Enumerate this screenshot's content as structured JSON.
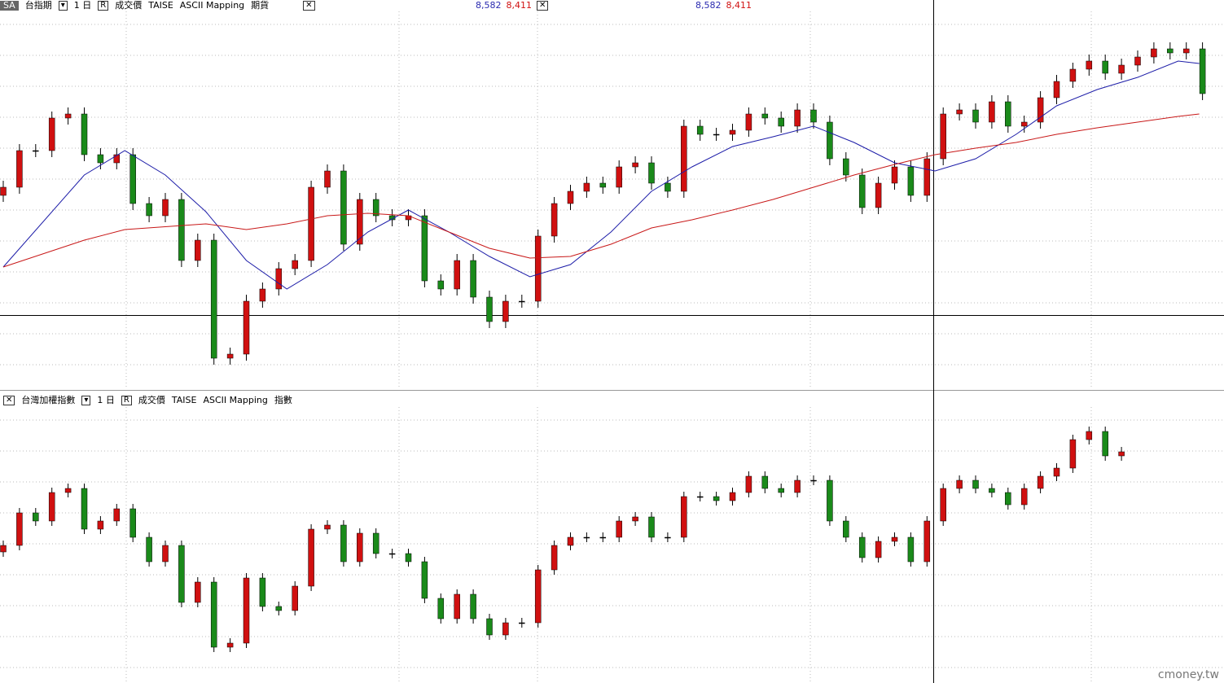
{
  "toolbar_top": {
    "symbol_tag": "SA",
    "name": "台指期",
    "period": "1 日",
    "mode": "R",
    "price_field": "成交價",
    "source": "TAISE",
    "mapping": "ASCII Mapping",
    "market": "期貨",
    "quote_a": "8,582",
    "quote_b": "8,411",
    "quote_c": "8,582",
    "quote_d": "8,411"
  },
  "toolbar_bottom": {
    "name": "台灣加權指數",
    "period": "1 日",
    "mode": "R",
    "price_field": "成交價",
    "source": "TAISE",
    "mapping": "ASCII Mapping",
    "market": "指數"
  },
  "watermark": "cmoney.tw",
  "chart_data": [
    {
      "type": "candlestick",
      "ylim": [
        0,
        464
      ],
      "up_color": "#d01010",
      "down_color": "#1a8a1a",
      "open": [
        238,
        248,
        293,
        293,
        333,
        338,
        288,
        278,
        288,
        228,
        213,
        233,
        158,
        183,
        38,
        43,
        108,
        123,
        148,
        158,
        248,
        268,
        178,
        233,
        213,
        208,
        213,
        133,
        123,
        158,
        113,
        83,
        108,
        108,
        188,
        228,
        243,
        253,
        248,
        273,
        278,
        253,
        243,
        323,
        313,
        313,
        318,
        338,
        333,
        323,
        343,
        328,
        283,
        263,
        223,
        253,
        273,
        238,
        283,
        338,
        343,
        328,
        353,
        323,
        328,
        358,
        378,
        393,
        403,
        388,
        398,
        408,
        418,
        413,
        418
      ],
      "high": [
        256,
        301,
        301,
        341,
        346,
        346,
        296,
        296,
        296,
        236,
        241,
        241,
        191,
        191,
        51,
        116,
        131,
        156,
        166,
        256,
        276,
        276,
        241,
        241,
        221,
        221,
        221,
        141,
        166,
        166,
        121,
        116,
        116,
        196,
        236,
        251,
        261,
        261,
        281,
        286,
        286,
        261,
        331,
        331,
        321,
        326,
        346,
        346,
        341,
        351,
        351,
        336,
        291,
        271,
        261,
        281,
        281,
        291,
        346,
        351,
        351,
        361,
        361,
        336,
        366,
        386,
        401,
        411,
        411,
        406,
        416,
        426,
        426,
        426,
        426
      ],
      "low": [
        230,
        240,
        285,
        285,
        325,
        280,
        270,
        270,
        220,
        205,
        205,
        150,
        150,
        30,
        30,
        35,
        100,
        115,
        140,
        150,
        240,
        170,
        170,
        205,
        200,
        200,
        125,
        115,
        115,
        105,
        75,
        75,
        100,
        100,
        180,
        220,
        235,
        240,
        240,
        265,
        245,
        235,
        235,
        305,
        305,
        305,
        310,
        325,
        315,
        315,
        320,
        275,
        255,
        215,
        215,
        245,
        230,
        230,
        275,
        330,
        320,
        320,
        315,
        315,
        320,
        350,
        370,
        385,
        380,
        380,
        390,
        400,
        405,
        405,
        355
      ],
      "close": [
        248,
        293,
        293,
        333,
        338,
        288,
        278,
        288,
        228,
        213,
        233,
        158,
        183,
        38,
        43,
        108,
        123,
        148,
        158,
        248,
        268,
        178,
        233,
        213,
        208,
        213,
        133,
        123,
        158,
        113,
        83,
        108,
        108,
        188,
        228,
        243,
        253,
        248,
        273,
        278,
        253,
        243,
        323,
        313,
        313,
        318,
        338,
        333,
        323,
        343,
        328,
        283,
        263,
        223,
        253,
        273,
        238,
        283,
        338,
        343,
        328,
        353,
        323,
        328,
        358,
        378,
        393,
        403,
        388,
        398,
        408,
        418,
        413,
        418,
        363
      ],
      "lines": [
        {
          "color": "#1c1ca8",
          "x": [
            0,
            5,
            7.5,
            10,
            12.5,
            15,
            17.5,
            20,
            22.5,
            25,
            27.5,
            30,
            32.5,
            35,
            37.5,
            40,
            42.5,
            45,
            47.5,
            50,
            52.5,
            55,
            57.5,
            60,
            62.5,
            65,
            67.5,
            70,
            72.5,
            73.8
          ],
          "values": [
            150,
            263,
            293,
            263,
            218,
            158,
            123,
            153,
            193,
            220,
            193,
            163,
            138,
            153,
            193,
            243,
            273,
            298,
            310,
            323,
            303,
            278,
            268,
            283,
            313,
            348,
            368,
            383,
            403,
            400
          ]
        },
        {
          "color": "#c81818",
          "x": [
            0,
            5,
            7.5,
            12.5,
            15,
            17.5,
            20,
            22.5,
            25,
            27.5,
            30,
            32.5,
            35,
            37.5,
            40,
            42.5,
            45,
            47.5,
            50,
            52.5,
            55,
            57.5,
            60,
            62.5,
            65,
            67.5,
            70,
            72.5,
            73.8
          ],
          "values": [
            150,
            183,
            196,
            203,
            196,
            203,
            213,
            216,
            213,
            193,
            173,
            161,
            163,
            178,
            198,
            208,
            220,
            233,
            248,
            263,
            276,
            288,
            296,
            303,
            313,
            321,
            328,
            335,
            338
          ]
        }
      ]
    },
    {
      "type": "candlestick",
      "ylim": [
        0,
        338
      ],
      "up_color": "#d01010",
      "down_color": "#1a8a1a",
      "open": [
        160,
        168,
        208,
        198,
        233,
        238,
        188,
        198,
        213,
        178,
        148,
        168,
        98,
        123,
        43,
        48,
        128,
        93,
        88,
        118,
        188,
        193,
        148,
        183,
        158,
        158,
        148,
        103,
        78,
        108,
        78,
        58,
        73,
        73,
        138,
        168,
        178,
        178,
        178,
        198,
        203,
        178,
        178,
        228,
        228,
        223,
        233,
        253,
        238,
        233,
        248,
        248,
        198,
        178,
        153,
        173,
        178,
        148,
        198,
        238,
        248,
        238,
        233,
        218,
        238,
        253,
        263,
        298,
        308,
        278
      ],
      "high": [
        174,
        214,
        214,
        239,
        244,
        244,
        204,
        219,
        219,
        184,
        174,
        174,
        129,
        129,
        54,
        134,
        134,
        99,
        124,
        194,
        199,
        199,
        189,
        189,
        164,
        164,
        154,
        109,
        114,
        114,
        84,
        79,
        79,
        144,
        174,
        184,
        184,
        184,
        204,
        209,
        209,
        184,
        234,
        234,
        234,
        239,
        259,
        259,
        244,
        254,
        254,
        254,
        204,
        184,
        179,
        184,
        184,
        204,
        244,
        254,
        254,
        244,
        239,
        244,
        259,
        269,
        304,
        314,
        314,
        289
      ],
      "low": [
        154,
        162,
        192,
        192,
        227,
        182,
        182,
        192,
        172,
        142,
        142,
        92,
        92,
        37,
        37,
        42,
        87,
        82,
        82,
        112,
        182,
        142,
        142,
        152,
        152,
        142,
        97,
        72,
        72,
        72,
        52,
        52,
        67,
        67,
        132,
        162,
        172,
        172,
        172,
        192,
        172,
        172,
        172,
        222,
        217,
        217,
        227,
        232,
        227,
        227,
        242,
        192,
        172,
        147,
        147,
        167,
        142,
        142,
        192,
        232,
        232,
        227,
        212,
        212,
        232,
        247,
        257,
        292,
        272,
        272
      ],
      "close": [
        168,
        208,
        198,
        233,
        238,
        188,
        198,
        213,
        178,
        148,
        168,
        98,
        123,
        43,
        48,
        128,
        93,
        88,
        118,
        188,
        193,
        148,
        183,
        158,
        158,
        148,
        103,
        78,
        108,
        78,
        58,
        73,
        73,
        138,
        168,
        178,
        178,
        178,
        198,
        203,
        178,
        178,
        228,
        228,
        223,
        233,
        253,
        238,
        233,
        248,
        248,
        198,
        178,
        153,
        173,
        178,
        148,
        198,
        238,
        248,
        238,
        233,
        218,
        238,
        253,
        263,
        298,
        308,
        278,
        283
      ]
    }
  ]
}
